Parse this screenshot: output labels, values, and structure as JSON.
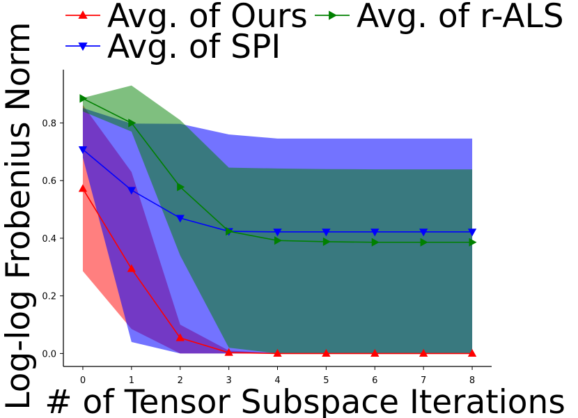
{
  "chart_data": {
    "type": "line",
    "title": "",
    "xlabel": "# of Tensor Subspace Iterations",
    "ylabel": "Log-log Frobenius Norm",
    "x": [
      0,
      1,
      2,
      3,
      4,
      5,
      6,
      7,
      8
    ],
    "xticks": [
      "0",
      "1",
      "2",
      "3",
      "4",
      "5",
      "6",
      "7",
      "8"
    ],
    "yticks": [
      "0.0",
      "0.2",
      "0.4",
      "0.6",
      "0.8"
    ],
    "xlim": [
      -0.4,
      8.4
    ],
    "ylim": [
      -0.045,
      0.985
    ],
    "grid": false,
    "legend_placement": "top",
    "series": [
      {
        "name": "Avg. of Ours",
        "color": "#ff0000",
        "marker": "triangle-up",
        "values": [
          0.572,
          0.294,
          0.054,
          0.003,
          0.0,
          0.0,
          0.0,
          0.0,
          0.0
        ],
        "band_lower": [
          0.286,
          0.085,
          0.0,
          0.0,
          0.0,
          0.0,
          0.0,
          0.0,
          0.0
        ],
        "band_upper": [
          0.862,
          0.63,
          0.1,
          0.01,
          0.0,
          0.0,
          0.0,
          0.0,
          0.0
        ],
        "band_color": "#ff0000",
        "band_alpha": 0.5
      },
      {
        "name": "Avg. of SPI",
        "color": "#0000ff",
        "marker": "triangle-down",
        "values": [
          0.708,
          0.567,
          0.47,
          0.424,
          0.422,
          0.422,
          0.422,
          0.422,
          0.422
        ],
        "band_lower": [
          0.68,
          0.04,
          0.0,
          0.0,
          0.0,
          0.0,
          0.0,
          0.0,
          0.0
        ],
        "band_upper": [
          0.852,
          0.798,
          0.797,
          0.76,
          0.746,
          0.746,
          0.746,
          0.746,
          0.746
        ],
        "band_color": "#0000ff",
        "band_alpha": 0.55
      },
      {
        "name": "Avg. of r-ALS",
        "color": "#008000",
        "marker": "triangle-right",
        "values": [
          0.885,
          0.8,
          0.578,
          0.424,
          0.392,
          0.388,
          0.386,
          0.386,
          0.386
        ],
        "band_lower": [
          0.84,
          0.77,
          0.34,
          0.02,
          0.0,
          0.0,
          0.0,
          0.0,
          0.0
        ],
        "band_upper": [
          0.887,
          0.93,
          0.81,
          0.645,
          0.642,
          0.64,
          0.639,
          0.639,
          0.639
        ],
        "band_color": "#008000",
        "band_alpha": 0.5
      }
    ]
  }
}
